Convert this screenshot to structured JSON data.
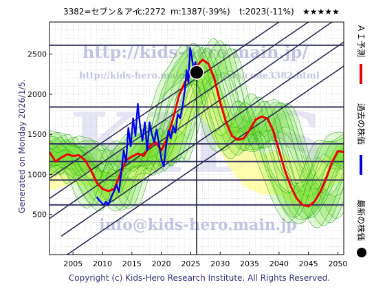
{
  "header": {
    "ticker": "3382=セブン＆アイ",
    "current": "c:2272",
    "min": "m:1387(-39%)",
    "target": "t:2023(-11%)",
    "stars": "★★★★★"
  },
  "side_label": "Generated on Monday 2026/1/5.",
  "legend": {
    "forecast": "ＡＩ予測",
    "past": "過去の株価",
    "latest": "最新の株価"
  },
  "watermarks": {
    "url": "http://kids-hero.main.jp/",
    "analysis": "http://kids-hero.main.jp/analysis/code3382.html",
    "email": "info@kids-hero.main.jp",
    "logo": "KIDS"
  },
  "copyright": "Copyright (c) Kids-Hero Research Institute. All Rights Reserved.",
  "colors": {
    "past": "#0000ee",
    "forecast": "#ee0000",
    "band_fill": "#66dd22",
    "band_line": "#119911",
    "yellow": "#ffff99",
    "trend": "#2a2a55",
    "hline": "#303060",
    "grid": "#bbbbbb",
    "watermark": "#b4b4dc"
  },
  "chart_data": {
    "type": "line",
    "xlim": [
      2001,
      2051
    ],
    "ylim": [
      0,
      2900
    ],
    "xticks": [
      2005,
      2010,
      2015,
      2020,
      2025,
      2030,
      2035,
      2040,
      2045,
      2050
    ],
    "yticks": [
      500,
      1000,
      1500,
      2000,
      2500
    ],
    "now": 2026,
    "latest_point": {
      "x": 2026.0,
      "y": 2272
    },
    "hlines": [
      620,
      930,
      1160,
      1380,
      1840,
      2610
    ],
    "trend_lines": [
      [
        [
          2001,
          950
        ],
        [
          2040,
          2900
        ]
      ],
      [
        [
          2001,
          700
        ],
        [
          2045,
          2900
        ]
      ],
      [
        [
          2001,
          450
        ],
        [
          2049,
          2900
        ]
      ],
      [
        [
          2003,
          230
        ],
        [
          2051,
          2650
        ]
      ],
      [
        [
          2004,
          0
        ],
        [
          2051,
          2350
        ]
      ]
    ],
    "yellow_band": {
      "x": [
        2001,
        2005,
        2008,
        2010,
        2013,
        2016,
        2019,
        2022,
        2024,
        2026,
        2028,
        2031,
        2034,
        2037,
        2040,
        2043,
        2046,
        2049,
        2051
      ],
      "upper": [
        1150,
        1180,
        1170,
        1050,
        1050,
        1250,
        1380,
        1650,
        1950,
        2300,
        2350,
        1900,
        1450,
        1250,
        1300,
        1150,
        1150,
        1250,
        1350
      ],
      "lower": [
        800,
        880,
        850,
        680,
        700,
        900,
        1050,
        1200,
        1500,
        1800,
        1600,
        1150,
        850,
        750,
        750,
        600,
        700,
        850,
        950
      ]
    },
    "series": [
      {
        "name": "AI予測",
        "x": [
          2001.0,
          2002.0,
          2003.0,
          2004.0,
          2005.0,
          2006.0,
          2007.0,
          2008.0,
          2009.0,
          2010.0,
          2011.0,
          2012.0,
          2013.0,
          2014.0,
          2015.0,
          2016.0,
          2017.0,
          2018.0,
          2019.0,
          2020.0,
          2021.0,
          2022.0,
          2023.0,
          2024.0,
          2025.0,
          2026.0,
          2027.0,
          2028.0,
          2029.0,
          2030.0,
          2031.0,
          2032.0,
          2033.0,
          2034.0,
          2035.0,
          2036.0,
          2037.0,
          2038.0,
          2039.0,
          2040.0,
          2041.0,
          2042.0,
          2043.0,
          2044.0,
          2045.0,
          2046.0,
          2047.0,
          2048.0,
          2049.0,
          2050.0,
          2051.0
        ],
        "values": [
          1280,
          1160,
          1210,
          1250,
          1230,
          1240,
          1180,
          1060,
          900,
          820,
          790,
          820,
          1000,
          1180,
          1220,
          1260,
          1230,
          1350,
          1400,
          1300,
          1450,
          1700,
          1980,
          2150,
          2250,
          2350,
          2430,
          2380,
          2200,
          1900,
          1650,
          1480,
          1430,
          1450,
          1550,
          1680,
          1720,
          1700,
          1550,
          1300,
          1050,
          850,
          700,
          620,
          600,
          660,
          780,
          950,
          1150,
          1290,
          1280
        ]
      },
      {
        "name": "過去の株価",
        "x": [
          2009.0,
          2009.4,
          2009.8,
          2010.2,
          2010.6,
          2011.0,
          2011.5,
          2012.0,
          2012.4,
          2012.8,
          2013.2,
          2013.6,
          2014.0,
          2014.4,
          2014.8,
          2015.2,
          2015.6,
          2016.0,
          2016.4,
          2016.8,
          2017.2,
          2017.6,
          2018.0,
          2018.4,
          2018.8,
          2019.2,
          2019.6,
          2020.0,
          2020.4,
          2020.8,
          2021.2,
          2021.6,
          2022.0,
          2022.4,
          2022.8,
          2023.2,
          2023.6,
          2024.0,
          2024.3,
          2024.6,
          2024.9,
          2025.2,
          2025.5,
          2025.8,
          2026.0
        ],
        "values": [
          720,
          680,
          650,
          620,
          660,
          620,
          720,
          800,
          870,
          780,
          1020,
          1300,
          1150,
          1580,
          1350,
          1700,
          1480,
          1880,
          1600,
          1420,
          1650,
          1300,
          1650,
          1500,
          1400,
          1560,
          1380,
          1200,
          1100,
          1350,
          1550,
          1450,
          1600,
          1520,
          1750,
          1700,
          1850,
          2050,
          2300,
          2150,
          2580,
          2450,
          2300,
          2400,
          2272
        ]
      }
    ],
    "green_bands": 10
  }
}
